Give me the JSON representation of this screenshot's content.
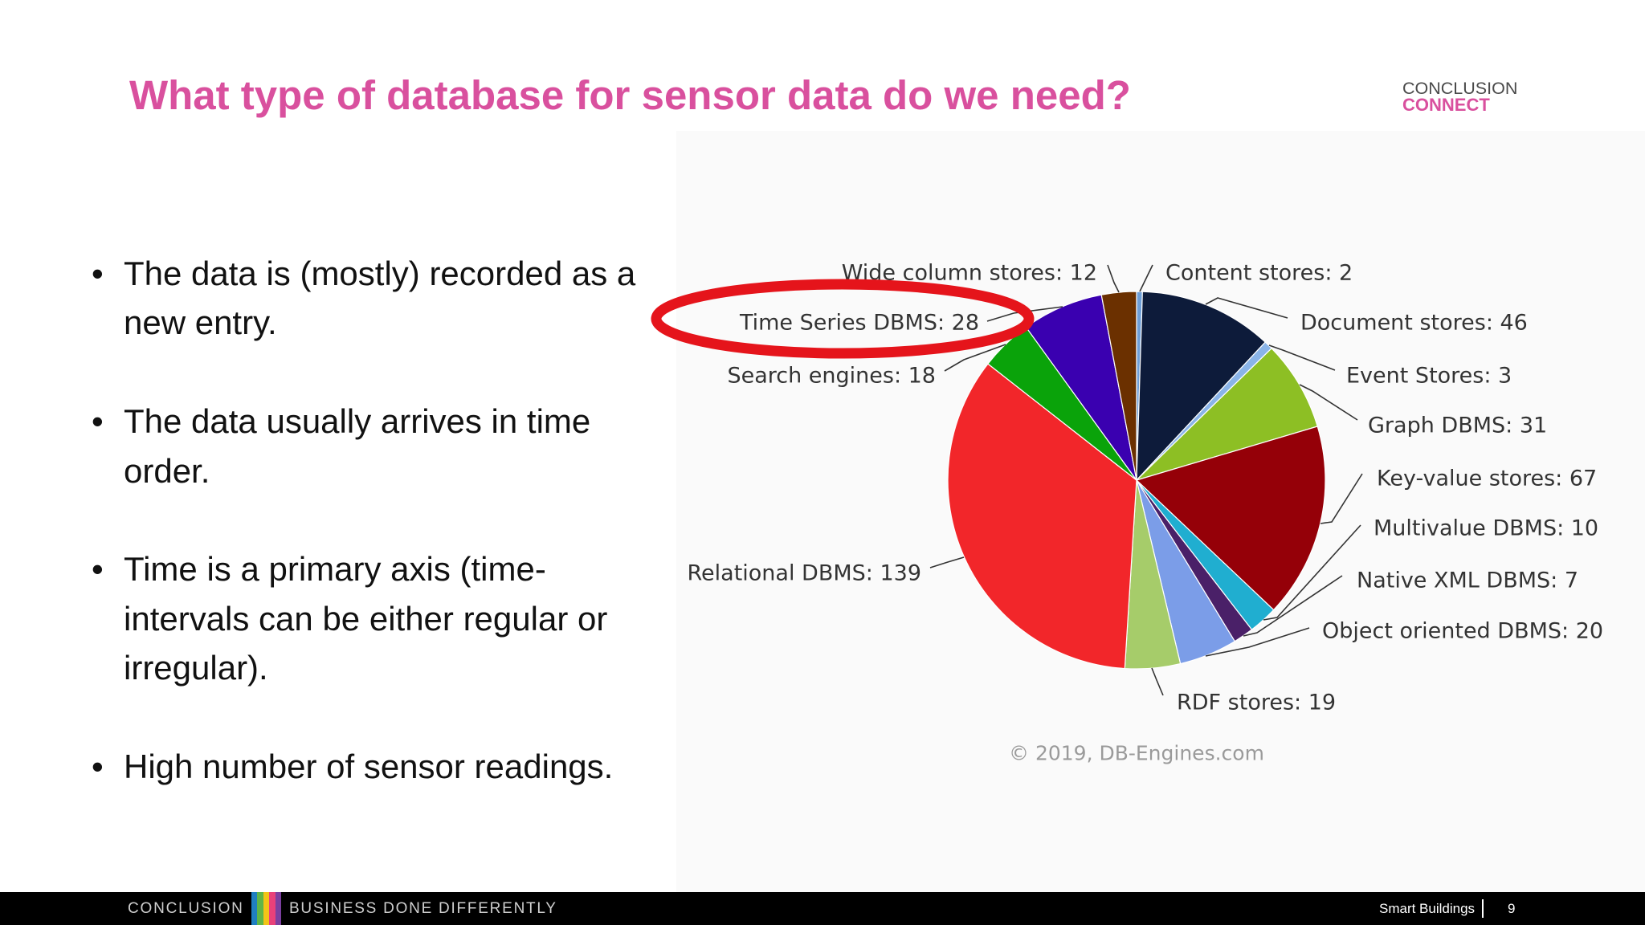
{
  "slide": {
    "title": "What type of database for sensor data do we need?",
    "logo": {
      "line1": "CONCLUSION",
      "line2": "CONNECT"
    },
    "bullets": [
      "The data is (mostly) recorded as a new entry.",
      "The data usually arrives in time order.",
      "Time is a primary axis (time-intervals can be either regular or irregular).",
      "High number of sensor readings."
    ],
    "footer": {
      "brand": "CONCLUSION",
      "tagline": "BUSINESS DONE DIFFERENTLY",
      "section": "Smart Buildings",
      "page_number": "9"
    }
  },
  "colors": {
    "title": "#d9509e",
    "logo_dark": "#4a4a4a",
    "logo_accent": "#d9509e",
    "bullet_text": "#111111",
    "footer_background": "#000000",
    "footer_text": "#cfcfcf",
    "footer_right_text": "#ffffff",
    "brand_stripes": [
      "#1f7fc1",
      "#5fb547",
      "#f2c417",
      "#e8417a",
      "#7b3fa0"
    ],
    "chart_label": "#333333",
    "chart_leader": "#333333",
    "chart_credit": "#9a9a9a",
    "highlight_ellipse": "#e5141b"
  },
  "chart_data": {
    "type": "pie",
    "categories": [
      "Content stores",
      "Document stores",
      "Event Stores",
      "Graph DBMS",
      "Key-value stores",
      "Multivalue DBMS",
      "Native XML DBMS",
      "Object oriented DBMS",
      "RDF stores",
      "Relational DBMS",
      "Search engines",
      "Time Series DBMS",
      "Wide column stores"
    ],
    "values": [
      2,
      46,
      3,
      31,
      67,
      10,
      7,
      20,
      19,
      139,
      18,
      28,
      12
    ],
    "slice_colors": [
      "#6e9fd8",
      "#0d1b3a",
      "#8ab4e8",
      "#8dbf24",
      "#950008",
      "#20aed0",
      "#4a2068",
      "#7b9de8",
      "#a6cc6a",
      "#f2262a",
      "#0aa30a",
      "#3a00b0",
      "#6b3000"
    ],
    "credit": "© 2019, DB-Engines.com",
    "highlighted_index": 11
  }
}
